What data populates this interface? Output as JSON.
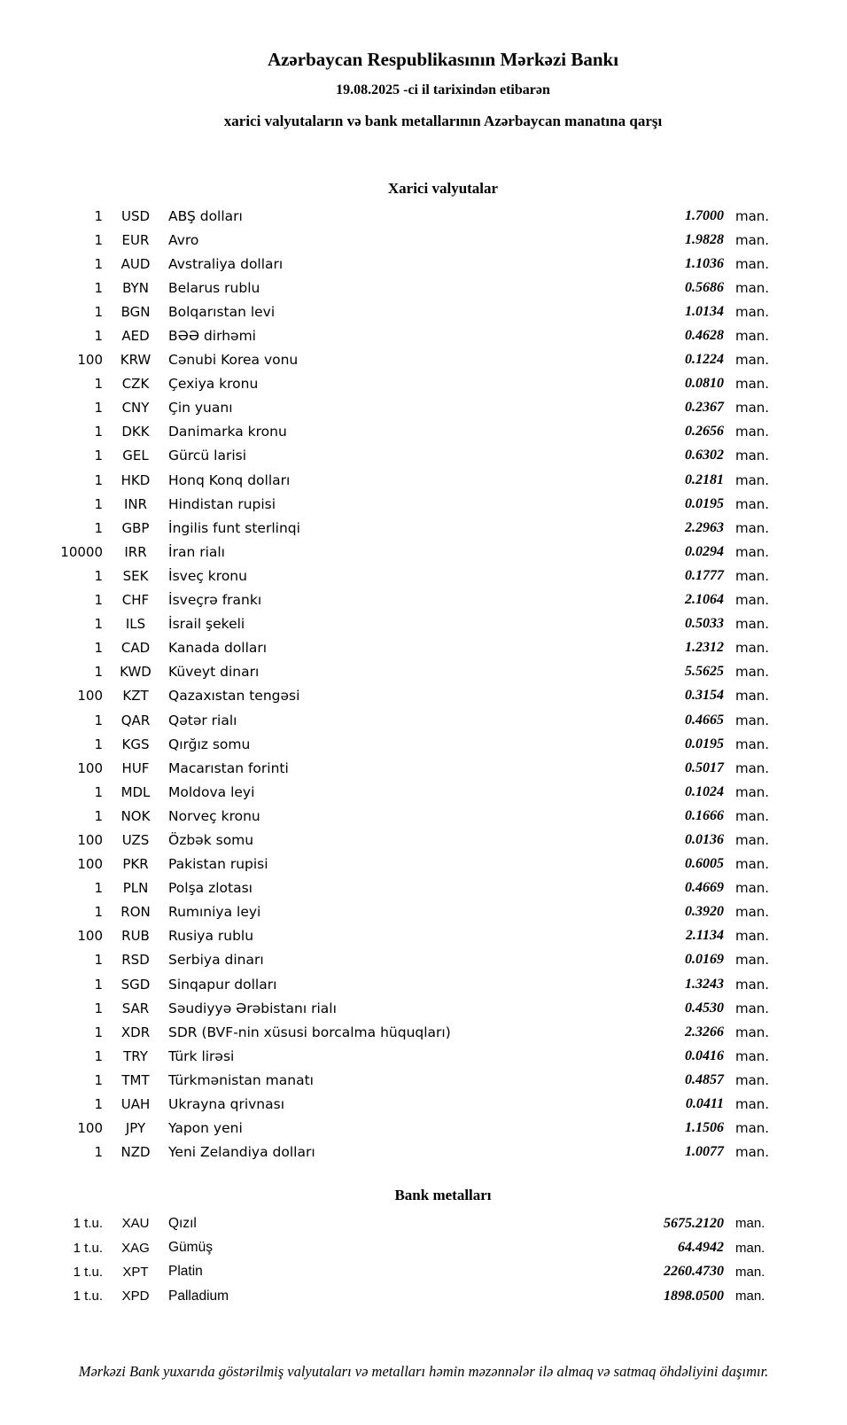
{
  "header": {
    "title": "Azərbaycan Respublikasının Mərkəzi Bankı",
    "date_line": "19.08.2025 -ci il tarixindən etibarən",
    "subtitle": "xarici valyutaların və bank metallarının Azərbaycan manatına qarşı"
  },
  "currencies": {
    "title": "Xarici valyutalar",
    "unit_label": "man.",
    "rows": [
      {
        "qty": "1",
        "code": "USD",
        "name": "ABŞ dolları",
        "rate": "1.7000"
      },
      {
        "qty": "1",
        "code": "EUR",
        "name": "Avro",
        "rate": "1.9828"
      },
      {
        "qty": "1",
        "code": "AUD",
        "name": "Avstraliya dolları",
        "rate": "1.1036"
      },
      {
        "qty": "1",
        "code": "BYN",
        "name": "Belarus rublu",
        "rate": "0.5686"
      },
      {
        "qty": "1",
        "code": "BGN",
        "name": "Bolqarıstan levi",
        "rate": "1.0134"
      },
      {
        "qty": "1",
        "code": "AED",
        "name": "BƏƏ dirhəmi",
        "rate": "0.4628"
      },
      {
        "qty": "100",
        "code": "KRW",
        "name": "Cənubi Korea vonu",
        "rate": "0.1224"
      },
      {
        "qty": "1",
        "code": "CZK",
        "name": "Çexiya kronu",
        "rate": "0.0810"
      },
      {
        "qty": "1",
        "code": "CNY",
        "name": "Çin yuanı",
        "rate": "0.2367"
      },
      {
        "qty": "1",
        "code": "DKK",
        "name": "Danimarka kronu",
        "rate": "0.2656"
      },
      {
        "qty": "1",
        "code": "GEL",
        "name": "Gürcü larisi",
        "rate": "0.6302"
      },
      {
        "qty": "1",
        "code": "HKD",
        "name": "Honq Konq dolları",
        "rate": "0.2181"
      },
      {
        "qty": "1",
        "code": "INR",
        "name": "Hindistan rupisi",
        "rate": "0.0195"
      },
      {
        "qty": "1",
        "code": "GBP",
        "name": "İngilis funt sterlinqi",
        "rate": "2.2963"
      },
      {
        "qty": "10000",
        "code": "IRR",
        "name": "İran rialı",
        "rate": "0.0294"
      },
      {
        "qty": "1",
        "code": "SEK",
        "name": "İsveç kronu",
        "rate": "0.1777"
      },
      {
        "qty": "1",
        "code": "CHF",
        "name": "İsveçrə frankı",
        "rate": "2.1064"
      },
      {
        "qty": "1",
        "code": "ILS",
        "name": "İsrail şekeli",
        "rate": "0.5033"
      },
      {
        "qty": "1",
        "code": "CAD",
        "name": "Kanada dolları",
        "rate": "1.2312"
      },
      {
        "qty": "1",
        "code": "KWD",
        "name": "Küveyt dinarı",
        "rate": "5.5625"
      },
      {
        "qty": "100",
        "code": "KZT",
        "name": "Qazaxıstan tengəsi",
        "rate": "0.3154"
      },
      {
        "qty": "1",
        "code": "QAR",
        "name": "Qətər rialı",
        "rate": "0.4665"
      },
      {
        "qty": "1",
        "code": "KGS",
        "name": "Qırğız somu",
        "rate": "0.0195"
      },
      {
        "qty": "100",
        "code": "HUF",
        "name": "Macarıstan forinti",
        "rate": "0.5017"
      },
      {
        "qty": "1",
        "code": "MDL",
        "name": "Moldova leyi",
        "rate": "0.1024"
      },
      {
        "qty": "1",
        "code": "NOK",
        "name": "Norveç kronu",
        "rate": "0.1666"
      },
      {
        "qty": "100",
        "code": "UZS",
        "name": "Özbək somu",
        "rate": "0.0136"
      },
      {
        "qty": "100",
        "code": "PKR",
        "name": "Pakistan rupisi",
        "rate": "0.6005"
      },
      {
        "qty": "1",
        "code": "PLN",
        "name": "Polşa zlotası",
        "rate": "0.4669"
      },
      {
        "qty": "1",
        "code": "RON",
        "name": "Rumıniya leyi",
        "rate": "0.3920"
      },
      {
        "qty": "100",
        "code": "RUB",
        "name": "Rusiya rublu",
        "rate": "2.1134"
      },
      {
        "qty": "1",
        "code": "RSD",
        "name": "Serbiya dinarı",
        "rate": "0.0169"
      },
      {
        "qty": "1",
        "code": "SGD",
        "name": "Sinqapur dolları",
        "rate": "1.3243"
      },
      {
        "qty": "1",
        "code": "SAR",
        "name": "Səudiyyə Ərəbistanı rialı",
        "rate": "0.4530"
      },
      {
        "qty": "1",
        "code": "XDR",
        "name": "SDR (BVF-nin xüsusi borcalma hüquqları)",
        "rate": "2.3266"
      },
      {
        "qty": "1",
        "code": "TRY",
        "name": "Türk lirəsi",
        "rate": "0.0416"
      },
      {
        "qty": "1",
        "code": "TMT",
        "name": "Türkmənistan manatı",
        "rate": "0.4857"
      },
      {
        "qty": "1",
        "code": "UAH",
        "name": "Ukrayna qrivnası",
        "rate": "0.0411"
      },
      {
        "qty": "100",
        "code": "JPY",
        "name": "Yapon yeni",
        "rate": "1.1506"
      },
      {
        "qty": "1",
        "code": "NZD",
        "name": "Yeni Zelandiya dolları",
        "rate": "1.0077"
      }
    ]
  },
  "metals": {
    "title": "Bank metalları",
    "unit_label": "man.",
    "rows": [
      {
        "qty": "1 t.u.",
        "code": "XAU",
        "name": "Qızıl",
        "rate": "5675.2120"
      },
      {
        "qty": "1 t.u.",
        "code": "XAG",
        "name": "Gümüş",
        "rate": "64.4942"
      },
      {
        "qty": "1 t.u.",
        "code": "XPT",
        "name": "Platin",
        "rate": "2260.4730"
      },
      {
        "qty": "1 t.u.",
        "code": "XPD",
        "name": "Palladium",
        "rate": "1898.0500"
      }
    ]
  },
  "footer": {
    "note": "Mərkəzi Bank yuxarıda göstərilmiş valyutaları və metalları həmin məzənnələr ilə almaq və satmaq öhdəliyini daşımır."
  }
}
